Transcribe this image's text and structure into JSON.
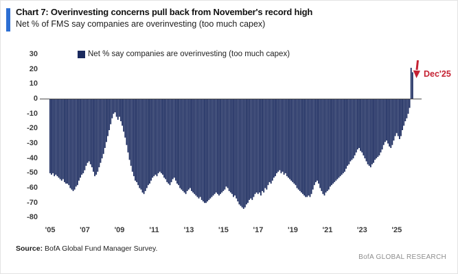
{
  "header": {
    "title": "Chart 7: Overinvesting concerns pull back from November's record high",
    "subtitle": "Net % of FMS say companies are overinvesting (too much capex)",
    "accent_color": "#2d6fd3"
  },
  "legend": {
    "label": "Net % say companies are overinvesting (too much capex)",
    "swatch_color": "#1a2a5e"
  },
  "annotation": {
    "label": "Dec'25",
    "color": "#c52233"
  },
  "footer": {
    "source_label": "Source:",
    "source_text": " BofA Global Fund Manager Survey.",
    "brand": "BofA GLOBAL RESEARCH"
  },
  "chart_data": {
    "type": "bar",
    "title": "Net % of FMS say companies are overinvesting (too much capex)",
    "legend": "Net % say companies are overinvesting (too much capex)",
    "frequency": "monthly",
    "x_start": "2005-01",
    "x_end": "2025-12",
    "ylim": [
      -80,
      30
    ],
    "yticks": [
      30,
      20,
      10,
      0,
      -10,
      -20,
      -30,
      -40,
      -50,
      -60,
      -70,
      -80
    ],
    "xtick_labels": [
      "'05",
      "'07",
      "'09",
      "'11",
      "'13",
      "'15",
      "'17",
      "'19",
      "'21",
      "'23",
      "'25"
    ],
    "grid": false,
    "zero_line": true,
    "bar_color": "#1a2a5e",
    "record_high": {
      "month": "2025-11",
      "value": 21
    },
    "annotation": {
      "label": "Dec'25",
      "month": "2025-12",
      "value": 18,
      "color": "#c52233"
    },
    "values": [
      -50,
      -51,
      -50,
      -52,
      -51,
      -52,
      -53,
      -54,
      -55,
      -54,
      -56,
      -57,
      -57,
      -58,
      -60,
      -61,
      -62,
      -61,
      -59,
      -58,
      -55,
      -53,
      -51,
      -50,
      -48,
      -45,
      -43,
      -42,
      -44,
      -46,
      -49,
      -52,
      -51,
      -49,
      -46,
      -43,
      -40,
      -37,
      -33,
      -29,
      -25,
      -21,
      -17,
      -13,
      -10,
      -9,
      -12,
      -14,
      -12,
      -15,
      -18,
      -22,
      -26,
      -31,
      -36,
      -41,
      -45,
      -49,
      -52,
      -55,
      -56,
      -58,
      -60,
      -61,
      -63,
      -64,
      -62,
      -60,
      -58,
      -57,
      -55,
      -53,
      -52,
      -51,
      -52,
      -50,
      -49,
      -50,
      -51,
      -53,
      -54,
      -56,
      -57,
      -58,
      -56,
      -54,
      -53,
      -55,
      -57,
      -58,
      -60,
      -61,
      -62,
      -63,
      -64,
      -62,
      -61,
      -60,
      -62,
      -63,
      -64,
      -65,
      -66,
      -67,
      -66,
      -68,
      -69,
      -70,
      -70,
      -69,
      -68,
      -67,
      -66,
      -65,
      -64,
      -63,
      -64,
      -65,
      -64,
      -63,
      -62,
      -61,
      -59,
      -60,
      -62,
      -63,
      -64,
      -66,
      -65,
      -67,
      -69,
      -71,
      -72,
      -73,
      -74,
      -73,
      -71,
      -70,
      -68,
      -67,
      -68,
      -66,
      -64,
      -63,
      -64,
      -63,
      -65,
      -62,
      -63,
      -60,
      -61,
      -58,
      -56,
      -57,
      -55,
      -53,
      -52,
      -50,
      -49,
      -48,
      -50,
      -49,
      -51,
      -50,
      -52,
      -53,
      -54,
      -55,
      -56,
      -57,
      -58,
      -60,
      -61,
      -62,
      -63,
      -64,
      -65,
      -66,
      -66,
      -65,
      -66,
      -64,
      -61,
      -58,
      -56,
      -55,
      -57,
      -60,
      -62,
      -64,
      -65,
      -63,
      -62,
      -61,
      -59,
      -58,
      -57,
      -56,
      -55,
      -54,
      -53,
      -52,
      -51,
      -50,
      -49,
      -47,
      -45,
      -44,
      -42,
      -41,
      -40,
      -38,
      -36,
      -34,
      -33,
      -35,
      -36,
      -38,
      -40,
      -42,
      -44,
      -45,
      -46,
      -44,
      -43,
      -41,
      -40,
      -39,
      -38,
      -36,
      -34,
      -31,
      -29,
      -28,
      -30,
      -32,
      -33,
      -31,
      -28,
      -25,
      -23,
      -25,
      -27,
      -25,
      -21,
      -18,
      -15,
      -13,
      -10,
      -6,
      21,
      18
    ]
  }
}
